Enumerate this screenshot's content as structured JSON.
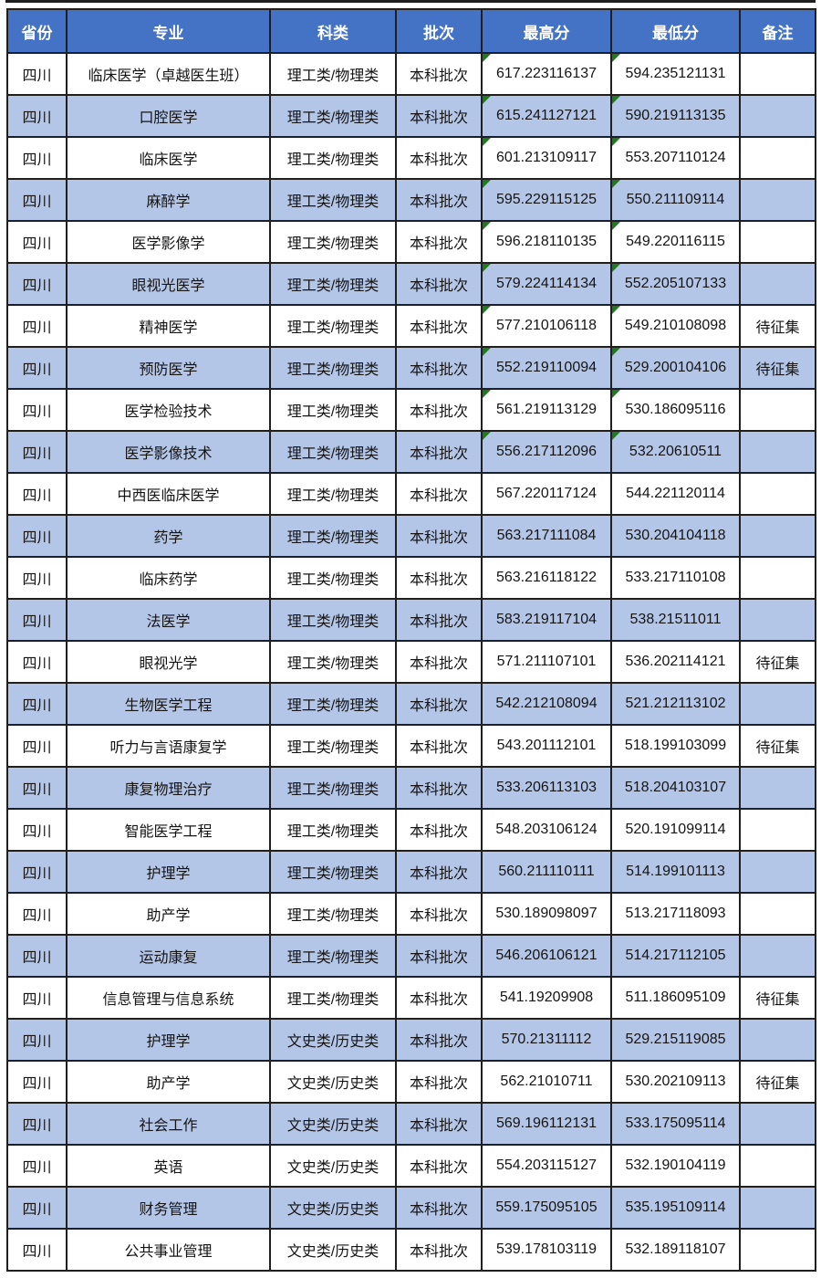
{
  "colors": {
    "header_bg": "#4472C4",
    "row_alt_bg": "#B4C6E7",
    "row_bg": "#FFFFFF",
    "border": "#1F1F1F",
    "header_text": "#FFFFFF",
    "body_text": "#141414",
    "marker_green": "#1E7B1E"
  },
  "table": {
    "columns": [
      {
        "key": "province",
        "label": "省份"
      },
      {
        "key": "major",
        "label": "专业"
      },
      {
        "key": "category",
        "label": "科类"
      },
      {
        "key": "batch",
        "label": "批次"
      },
      {
        "key": "max",
        "label": "最高分"
      },
      {
        "key": "min",
        "label": "最低分"
      },
      {
        "key": "remark",
        "label": "备注"
      }
    ],
    "rows": [
      {
        "province": "四川",
        "major": "临床医学（卓越医生班）",
        "category": "理工类/物理类",
        "batch": "本科批次",
        "max": "617.223116137",
        "min": "594.235121131",
        "remark": "",
        "score_marker": true
      },
      {
        "province": "四川",
        "major": "口腔医学",
        "category": "理工类/物理类",
        "batch": "本科批次",
        "max": "615.241127121",
        "min": "590.219113135",
        "remark": "",
        "score_marker": true
      },
      {
        "province": "四川",
        "major": "临床医学",
        "category": "理工类/物理类",
        "batch": "本科批次",
        "max": "601.213109117",
        "min": "553.207110124",
        "remark": "",
        "score_marker": true
      },
      {
        "province": "四川",
        "major": "麻醉学",
        "category": "理工类/物理类",
        "batch": "本科批次",
        "max": "595.229115125",
        "min": "550.211109114",
        "remark": "",
        "score_marker": true
      },
      {
        "province": "四川",
        "major": "医学影像学",
        "category": "理工类/物理类",
        "batch": "本科批次",
        "max": "596.218110135",
        "min": "549.220116115",
        "remark": "",
        "score_marker": true
      },
      {
        "province": "四川",
        "major": "眼视光医学",
        "category": "理工类/物理类",
        "batch": "本科批次",
        "max": "579.224114134",
        "min": "552.205107133",
        "remark": "",
        "score_marker": true
      },
      {
        "province": "四川",
        "major": "精神医学",
        "category": "理工类/物理类",
        "batch": "本科批次",
        "max": "577.210106118",
        "min": "549.210108098",
        "remark": "待征集",
        "score_marker": true
      },
      {
        "province": "四川",
        "major": "预防医学",
        "category": "理工类/物理类",
        "batch": "本科批次",
        "max": "552.219110094",
        "min": "529.200104106",
        "remark": "待征集",
        "score_marker": true
      },
      {
        "province": "四川",
        "major": "医学检验技术",
        "category": "理工类/物理类",
        "batch": "本科批次",
        "max": "561.219113129",
        "min": "530.186095116",
        "remark": "",
        "score_marker": true
      },
      {
        "province": "四川",
        "major": "医学影像技术",
        "category": "理工类/物理类",
        "batch": "本科批次",
        "max": "556.217112096",
        "min": "532.20610511",
        "remark": "",
        "score_marker": true
      },
      {
        "province": "四川",
        "major": "中西医临床医学",
        "category": "理工类/物理类",
        "batch": "本科批次",
        "max": "567.220117124",
        "min": "544.221120114",
        "remark": "",
        "score_marker": false
      },
      {
        "province": "四川",
        "major": "药学",
        "category": "理工类/物理类",
        "batch": "本科批次",
        "max": "563.217111084",
        "min": "530.204104118",
        "remark": "",
        "score_marker": false
      },
      {
        "province": "四川",
        "major": "临床药学",
        "category": "理工类/物理类",
        "batch": "本科批次",
        "max": "563.216118122",
        "min": "533.217110108",
        "remark": "",
        "score_marker": false
      },
      {
        "province": "四川",
        "major": "法医学",
        "category": "理工类/物理类",
        "batch": "本科批次",
        "max": "583.219117104",
        "min": "538.21511011",
        "remark": "",
        "score_marker": false
      },
      {
        "province": "四川",
        "major": "眼视光学",
        "category": "理工类/物理类",
        "batch": "本科批次",
        "max": "571.211107101",
        "min": "536.202114121",
        "remark": "待征集",
        "score_marker": false
      },
      {
        "province": "四川",
        "major": "生物医学工程",
        "category": "理工类/物理类",
        "batch": "本科批次",
        "max": "542.212108094",
        "min": "521.212113102",
        "remark": "",
        "score_marker": false
      },
      {
        "province": "四川",
        "major": "听力与言语康复学",
        "category": "理工类/物理类",
        "batch": "本科批次",
        "max": "543.201112101",
        "min": "518.199103099",
        "remark": "待征集",
        "score_marker": false
      },
      {
        "province": "四川",
        "major": "康复物理治疗",
        "category": "理工类/物理类",
        "batch": "本科批次",
        "max": "533.206113103",
        "min": "518.204103107",
        "remark": "",
        "score_marker": false
      },
      {
        "province": "四川",
        "major": "智能医学工程",
        "category": "理工类/物理类",
        "batch": "本科批次",
        "max": "548.203106124",
        "min": "520.191099114",
        "remark": "",
        "score_marker": false
      },
      {
        "province": "四川",
        "major": "护理学",
        "category": "理工类/物理类",
        "batch": "本科批次",
        "max": "560.211110111",
        "min": "514.199101113",
        "remark": "",
        "score_marker": false
      },
      {
        "province": "四川",
        "major": "助产学",
        "category": "理工类/物理类",
        "batch": "本科批次",
        "max": "530.189098097",
        "min": "513.217118093",
        "remark": "",
        "score_marker": false
      },
      {
        "province": "四川",
        "major": "运动康复",
        "category": "理工类/物理类",
        "batch": "本科批次",
        "max": "546.206106121",
        "min": "514.217112105",
        "remark": "",
        "score_marker": false
      },
      {
        "province": "四川",
        "major": "信息管理与信息系统",
        "category": "理工类/物理类",
        "batch": "本科批次",
        "max": "541.19209908",
        "min": "511.186095109",
        "remark": "待征集",
        "score_marker": false
      },
      {
        "province": "四川",
        "major": "护理学",
        "category": "文史类/历史类",
        "batch": "本科批次",
        "max": "570.21311112",
        "min": "529.215119085",
        "remark": "",
        "score_marker": false
      },
      {
        "province": "四川",
        "major": "助产学",
        "category": "文史类/历史类",
        "batch": "本科批次",
        "max": "562.21010711",
        "min": "530.202109113",
        "remark": "待征集",
        "score_marker": false
      },
      {
        "province": "四川",
        "major": "社会工作",
        "category": "文史类/历史类",
        "batch": "本科批次",
        "max": "569.196112131",
        "min": "533.175095114",
        "remark": "",
        "score_marker": false
      },
      {
        "province": "四川",
        "major": "英语",
        "category": "文史类/历史类",
        "batch": "本科批次",
        "max": "554.203115127",
        "min": "532.190104119",
        "remark": "",
        "score_marker": false
      },
      {
        "province": "四川",
        "major": "财务管理",
        "category": "文史类/历史类",
        "batch": "本科批次",
        "max": "559.175095105",
        "min": "535.195109114",
        "remark": "",
        "score_marker": false
      },
      {
        "province": "四川",
        "major": "公共事业管理",
        "category": "文史类/历史类",
        "batch": "本科批次",
        "max": "539.178103119",
        "min": "532.189118107",
        "remark": "",
        "score_marker": false
      }
    ]
  }
}
